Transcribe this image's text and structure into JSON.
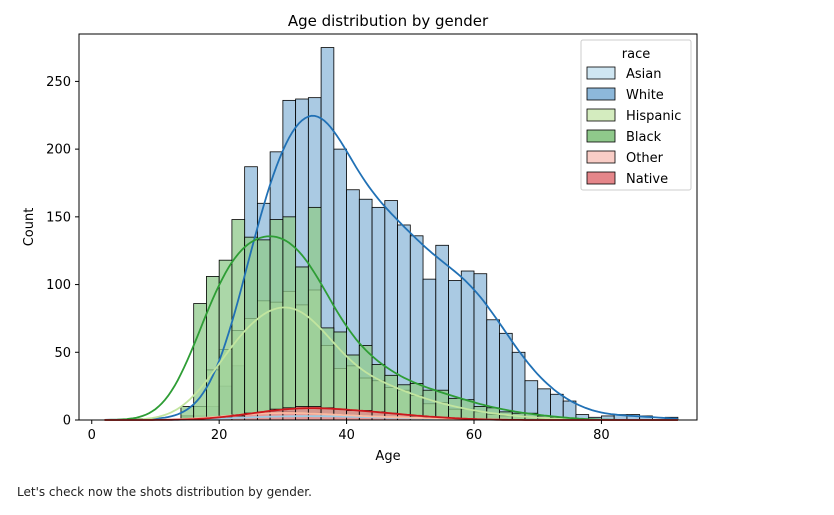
{
  "chart_data": {
    "type": "histogram",
    "title": "Age distribution by gender",
    "xlabel": "Age",
    "ylabel": "Count",
    "xlim": [
      -2,
      95
    ],
    "ylim": [
      0,
      285
    ],
    "x_ticks": [
      0,
      20,
      40,
      60,
      80
    ],
    "y_ticks": [
      0,
      50,
      100,
      150,
      200,
      250
    ],
    "bin_edges": [
      2,
      4,
      6,
      8,
      10,
      12,
      14,
      16,
      18,
      20,
      22,
      24,
      26,
      28,
      30,
      32,
      34,
      36,
      38,
      40,
      42,
      44,
      46,
      48,
      50,
      52,
      54,
      56,
      58,
      60,
      62,
      64,
      66,
      68,
      70,
      72,
      74,
      76,
      78,
      80,
      82,
      84,
      86,
      88,
      90,
      92
    ],
    "grid": false,
    "legend": {
      "title": "race",
      "placement": "top-right"
    },
    "series": [
      {
        "name": "Asian",
        "color": "#cfe6f2",
        "edge": "#000000",
        "kde_color": "#9ecae1",
        "values": [
          0,
          0,
          0,
          0,
          0,
          0,
          0,
          0,
          1,
          1,
          2,
          2,
          2,
          3,
          3,
          3,
          3,
          3,
          3,
          2,
          2,
          2,
          2,
          1,
          1,
          1,
          1,
          1,
          1,
          0,
          0,
          0,
          0,
          0,
          0,
          0,
          0,
          0,
          0,
          0,
          0,
          0,
          0,
          0,
          0
        ]
      },
      {
        "name": "White",
        "color": "#8db8da",
        "edge": "#000000",
        "kde_color": "#2171b5",
        "values": [
          0,
          0,
          1,
          0,
          0,
          0,
          2,
          3,
          10,
          25,
          40,
          187,
          160,
          198,
          236,
          237,
          238,
          275,
          200,
          170,
          163,
          157,
          162,
          144,
          136,
          104,
          129,
          103,
          110,
          108,
          74,
          64,
          50,
          29,
          23,
          19,
          14,
          4,
          2,
          3,
          4,
          4,
          3,
          0,
          2
        ]
      },
      {
        "name": "Hispanic",
        "color": "#d4ecbf",
        "edge": "#000000",
        "kde_color": "#c2e59f",
        "values": [
          0,
          0,
          0,
          0,
          0,
          0,
          3,
          10,
          37,
          52,
          66,
          75,
          88,
          87,
          95,
          85,
          96,
          55,
          38,
          40,
          31,
          29,
          24,
          22,
          18,
          12,
          13,
          8,
          8,
          6,
          4,
          3,
          3,
          2,
          1,
          1,
          0,
          0,
          0,
          0,
          0,
          0,
          0,
          0,
          0
        ]
      },
      {
        "name": "Black",
        "color": "#8fc98b",
        "edge": "#000000",
        "kde_color": "#2e9d35",
        "values": [
          0,
          0,
          0,
          0,
          0,
          0,
          10,
          86,
          106,
          118,
          148,
          135,
          133,
          148,
          150,
          113,
          157,
          68,
          65,
          48,
          55,
          41,
          33,
          26,
          27,
          22,
          22,
          16,
          15,
          10,
          9,
          6,
          5,
          5,
          3,
          2,
          1,
          0,
          0,
          0,
          0,
          0,
          0,
          0,
          0
        ]
      },
      {
        "name": "Other",
        "color": "#f9cdc6",
        "edge": "#000000",
        "kde_color": "#fcbba1",
        "values": [
          0,
          0,
          0,
          0,
          0,
          0,
          0,
          1,
          2,
          3,
          4,
          5,
          5,
          6,
          6,
          5,
          5,
          4,
          4,
          3,
          3,
          2,
          2,
          2,
          2,
          1,
          1,
          1,
          1,
          0,
          0,
          0,
          0,
          0,
          0,
          0,
          0,
          0,
          0,
          0,
          0,
          0,
          0,
          0,
          0
        ]
      },
      {
        "name": "Native",
        "color": "#e5868a",
        "edge": "#000000",
        "kde_color": "#cb181d",
        "values": [
          0,
          0,
          0,
          0,
          0,
          0,
          0,
          0,
          1,
          2,
          3,
          5,
          6,
          8,
          9,
          10,
          10,
          9,
          8,
          7,
          7,
          6,
          5,
          4,
          3,
          2,
          2,
          1,
          1,
          0,
          0,
          0,
          0,
          0,
          0,
          0,
          0,
          0,
          0,
          0,
          0,
          0,
          0,
          0,
          0
        ]
      }
    ]
  },
  "caption": "Let's check now the shots distribution by gender."
}
